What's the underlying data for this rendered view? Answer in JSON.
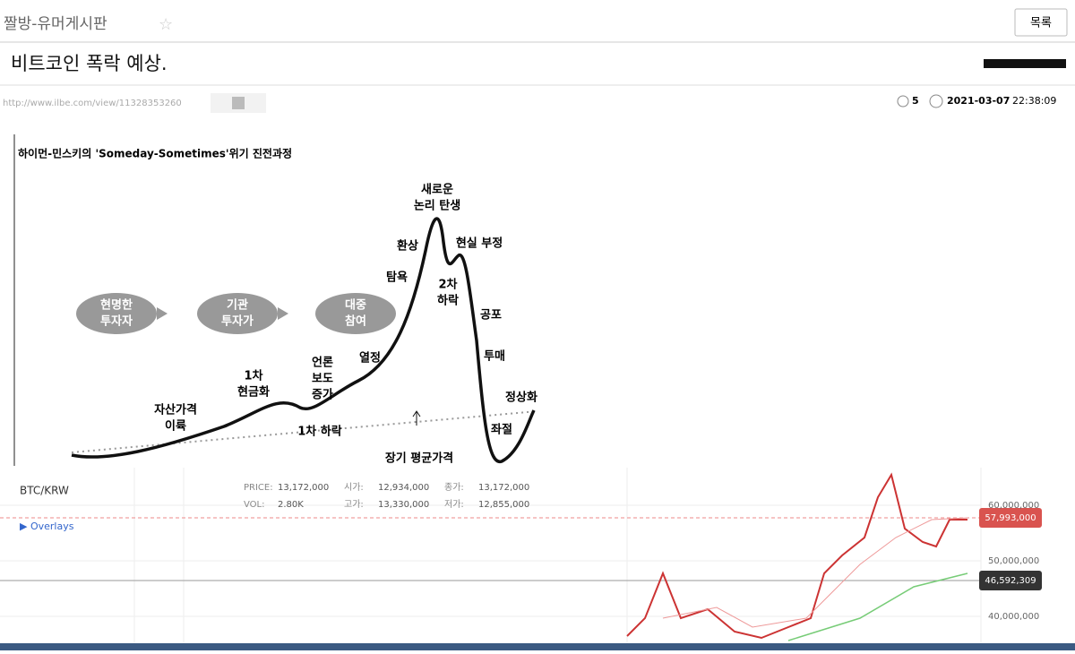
{
  "board": {
    "name": "짤방-유머게시판",
    "list_button": "목록"
  },
  "post": {
    "title": "비트코인 폭락 예상.",
    "url": "http://www.ilbe.com/view/11328353260",
    "comments": 5,
    "date": "2021-03-07",
    "time": "22:38:09"
  },
  "diagram": {
    "title": "하이먼-민스키의 'Someday-Sometimes'위기 진전과정",
    "stages": [
      [
        "현명한",
        "투자자"
      ],
      [
        "기관",
        "투자가"
      ],
      [
        "대중",
        "참여"
      ]
    ],
    "labels": [
      [
        "새로운",
        "논리 탄생"
      ],
      [
        "환상"
      ],
      [
        "현실 부정"
      ],
      [
        "탐욕"
      ],
      [
        "2차",
        "하락"
      ],
      [
        "공포"
      ],
      [
        "열정"
      ],
      [
        "투매"
      ],
      [
        "언론",
        "보도",
        "증가"
      ],
      [
        "1차",
        "현금화"
      ],
      [
        "자산가격",
        "이륙"
      ],
      [
        "1차 하락"
      ],
      [
        "정상화"
      ],
      [
        "좌절"
      ],
      [
        "장기 평균가격"
      ]
    ]
  },
  "ticker": {
    "symbol": "BTC/KRW",
    "overlays": "▶ Overlays",
    "stats": [
      [
        "PRICE:",
        "13,172,000"
      ],
      [
        "시가:",
        "12,934,000"
      ],
      [
        "종가:",
        "13,172,000"
      ],
      [
        "VOL:",
        "2.80K"
      ],
      [
        "고가:",
        "13,330,000"
      ],
      [
        "저가:",
        "12,855,000"
      ]
    ],
    "price_axis": [
      "60,000,000",
      "50,000,000",
      "40,000,000"
    ],
    "last_price": "57,993,000",
    "moving_average": "46,592,309"
  }
}
